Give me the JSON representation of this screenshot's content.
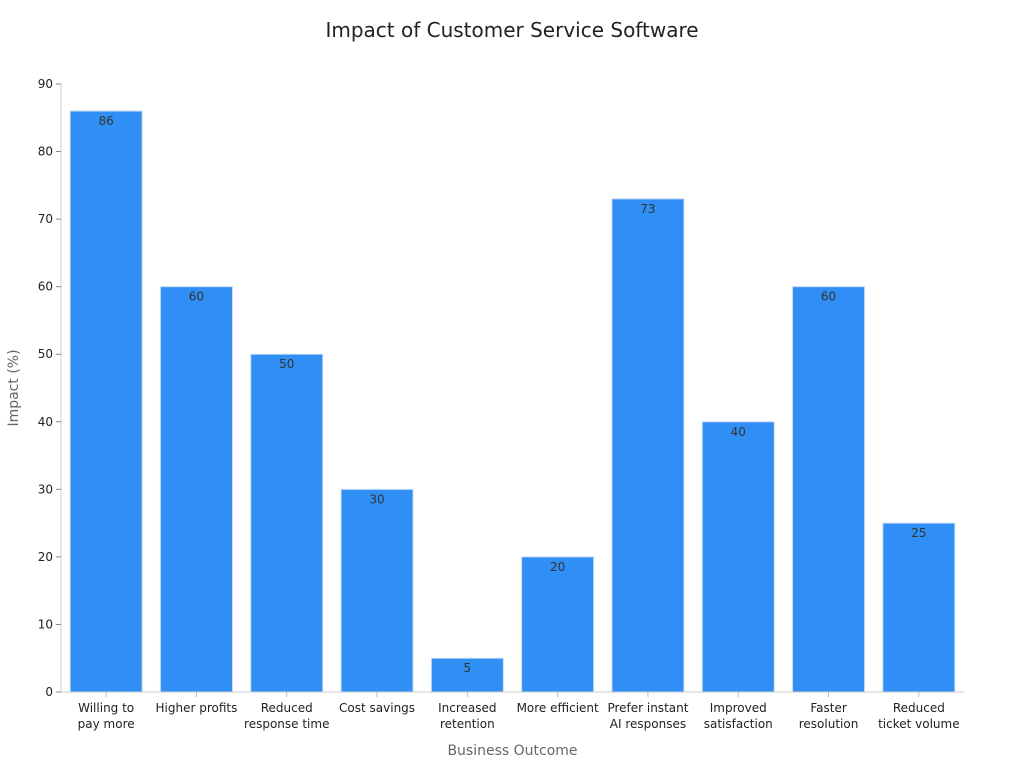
{
  "chart_data": {
    "type": "bar",
    "title": "Impact of Customer Service Software",
    "xlabel": "Business Outcome",
    "ylabel": "Impact (%)",
    "categories": [
      [
        "Willing to",
        "pay more"
      ],
      [
        "Higher profits"
      ],
      [
        "Reduced",
        "response time"
      ],
      [
        "Cost savings"
      ],
      [
        "Increased",
        "retention"
      ],
      [
        "More efficient"
      ],
      [
        "Prefer instant",
        "AI responses"
      ],
      [
        "Improved",
        "satisfaction"
      ],
      [
        "Faster",
        "resolution"
      ],
      [
        "Reduced",
        "ticket volume"
      ]
    ],
    "values": [
      86,
      60,
      50,
      30,
      5,
      20,
      73,
      40,
      60,
      25
    ],
    "ylim": [
      0,
      90
    ],
    "yticks": [
      0,
      10,
      20,
      30,
      40,
      50,
      60,
      70,
      80,
      90
    ],
    "bar_color": "#2f8ff5",
    "grid": false,
    "legend": "none"
  }
}
